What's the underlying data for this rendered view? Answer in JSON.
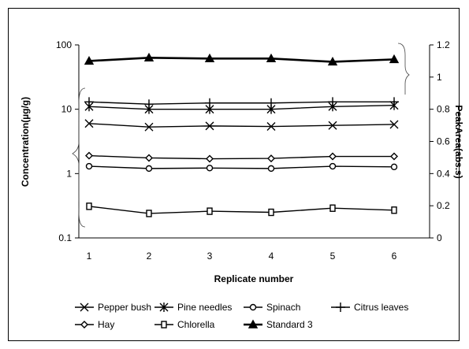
{
  "chart_data": {
    "type": "line",
    "xlabel": "Replicate number",
    "ylabel": "Concentration(µg/g)",
    "y2label": "PeakArea(abs.s)",
    "x": [
      1,
      2,
      3,
      4,
      5,
      6
    ],
    "x_ticks": [
      "1",
      "2",
      "3",
      "4",
      "5",
      "6"
    ],
    "y_scale": "log",
    "ylim": [
      0.1,
      100
    ],
    "y_ticks": [
      "0.1",
      "1",
      "10",
      "100"
    ],
    "y2lim": [
      0,
      1.2
    ],
    "y2_ticks": [
      "0",
      "0.2",
      "0.4",
      "0.6",
      "0.8",
      "1",
      "1.2"
    ],
    "grid": false,
    "legend_position": "bottom",
    "series": [
      {
        "name": "Pepper bush",
        "axis": "left",
        "marker": "x",
        "values": [
          6.0,
          5.3,
          5.5,
          5.4,
          5.6,
          5.8
        ]
      },
      {
        "name": "Pine needles",
        "axis": "left",
        "marker": "star",
        "values": [
          11.0,
          10.0,
          10.0,
          10.0,
          11.0,
          11.5
        ]
      },
      {
        "name": "Spinach",
        "axis": "left",
        "marker": "circle",
        "values": [
          1.3,
          1.2,
          1.22,
          1.2,
          1.3,
          1.27
        ]
      },
      {
        "name": "Citrus leaves",
        "axis": "left",
        "marker": "plus",
        "values": [
          13.0,
          12.0,
          12.5,
          12.5,
          13.0,
          13.0
        ]
      },
      {
        "name": "Hay",
        "axis": "left",
        "marker": "diamond",
        "values": [
          1.9,
          1.75,
          1.7,
          1.72,
          1.85,
          1.85
        ]
      },
      {
        "name": "Chlorella",
        "axis": "left",
        "marker": "bar",
        "values": [
          0.31,
          0.24,
          0.26,
          0.25,
          0.29,
          0.27
        ]
      },
      {
        "name": "Standard 3",
        "axis": "right",
        "marker": "triangle",
        "values": [
          1.1,
          1.12,
          1.115,
          1.115,
          1.095,
          1.11
        ]
      }
    ]
  },
  "colors": {
    "line": "#000000",
    "background": "#ffffff"
  }
}
